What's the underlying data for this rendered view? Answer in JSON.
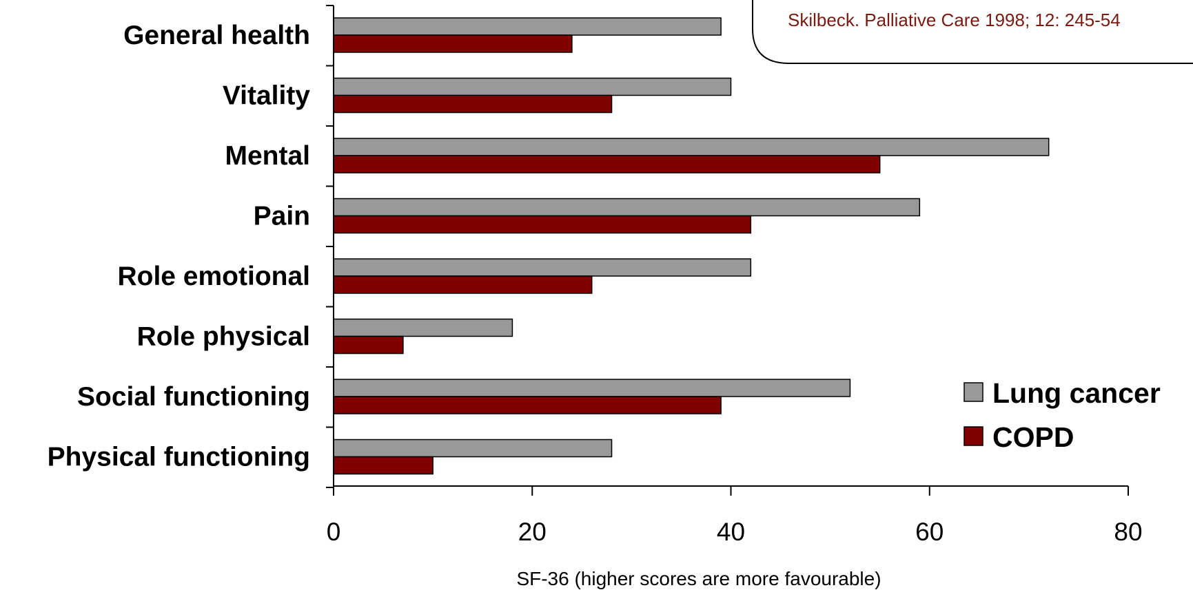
{
  "citation": "Skilbeck. Palliative Care 1998; 12: 245-54",
  "chart_data": {
    "type": "bar",
    "orientation": "horizontal",
    "categories": [
      "General health",
      "Vitality",
      "Mental",
      "Pain",
      "Role emotional",
      "Role physical",
      "Social functioning",
      "Physical functioning"
    ],
    "series": [
      {
        "name": "Lung cancer",
        "color": "#999999",
        "values": [
          39,
          40,
          72,
          59,
          42,
          18,
          52,
          28
        ]
      },
      {
        "name": "COPD",
        "color": "#800000",
        "values": [
          24,
          28,
          55,
          42,
          26,
          7,
          39,
          10
        ]
      }
    ],
    "xlabel": "SF-36 (higher scores are more favourable)",
    "ylabel": "",
    "xlim": [
      0,
      80
    ],
    "xticks": [
      "0",
      "20",
      "40",
      "60",
      "80"
    ],
    "grid": false,
    "legend_position": "bottom-right"
  }
}
